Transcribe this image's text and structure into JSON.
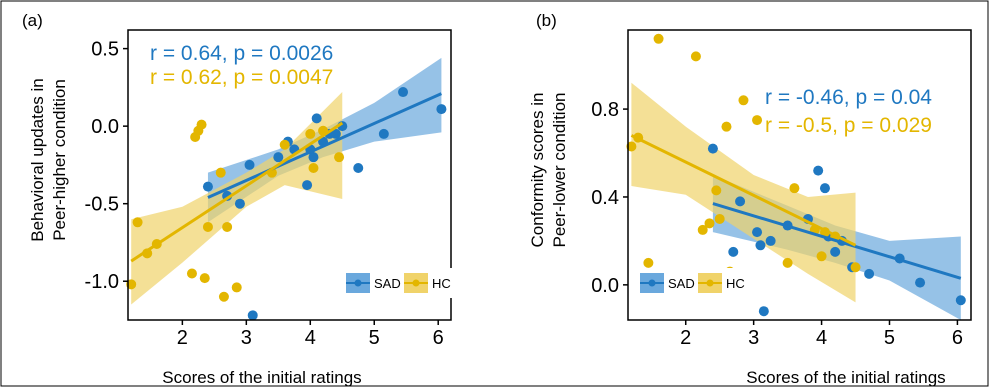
{
  "colors": {
    "sad": "#1f78c1",
    "hc": "#e3b600",
    "ci_sad": "#6aa8dd",
    "ci_hc": "#f0d36a",
    "axis": "#000000"
  },
  "chart_data": [
    {
      "type": "scatter",
      "panel_label": "(a)",
      "xlabel": "Scores of the initial ratings",
      "ylabel_line1": "Behavioral updates in",
      "ylabel_line2": "Peer-higher condition",
      "xlim": [
        1.15,
        6.2
      ],
      "ylim": [
        -1.25,
        0.62
      ],
      "xticks": [
        2,
        3,
        4,
        5,
        6
      ],
      "xtick_labels": [
        "2",
        "3",
        "4",
        "5",
        "6"
      ],
      "yticks": [
        0.5,
        0.0,
        -0.5,
        -1.0
      ],
      "ytick_labels": [
        "0.5",
        "0.0",
        "-0.5",
        "-1.0"
      ],
      "grid": false,
      "legend_position": "bottom-right",
      "annotations": [
        {
          "series": "SAD",
          "text": "r = 0.64, p = 0.0026"
        },
        {
          "series": "HC",
          "text": "r = 0.62, p = 0.0047"
        }
      ],
      "series": [
        {
          "name": "SAD",
          "points": [
            [
              2.4,
              -0.39
            ],
            [
              2.7,
              -0.45
            ],
            [
              2.9,
              -0.5
            ],
            [
              3.05,
              -0.25
            ],
            [
              3.1,
              -1.22
            ],
            [
              3.5,
              -0.2
            ],
            [
              3.65,
              -0.1
            ],
            [
              3.75,
              -0.15
            ],
            [
              3.95,
              -0.38
            ],
            [
              4.0,
              -0.15
            ],
            [
              4.05,
              -0.2
            ],
            [
              4.1,
              0.05
            ],
            [
              4.2,
              -0.1
            ],
            [
              4.3,
              -0.05
            ],
            [
              4.4,
              -0.05
            ],
            [
              4.5,
              0.0
            ],
            [
              4.75,
              -0.27
            ],
            [
              5.15,
              -0.05
            ],
            [
              5.45,
              0.22
            ],
            [
              6.05,
              0.11
            ]
          ],
          "fit_line": [
            [
              2.4,
              -0.46
            ],
            [
              6.05,
              0.21
            ]
          ],
          "ci_upper": [
            [
              2.4,
              -0.3
            ],
            [
              3.5,
              -0.15
            ],
            [
              4.2,
              -0.02
            ],
            [
              5.0,
              0.15
            ],
            [
              6.05,
              0.44
            ]
          ],
          "ci_lower": [
            [
              2.4,
              -0.62
            ],
            [
              3.5,
              -0.32
            ],
            [
              4.2,
              -0.2
            ],
            [
              5.0,
              -0.1
            ],
            [
              6.05,
              -0.04
            ]
          ]
        },
        {
          "name": "HC",
          "points": [
            [
              1.2,
              -1.02
            ],
            [
              1.3,
              -0.62
            ],
            [
              1.45,
              -0.82
            ],
            [
              1.6,
              -0.76
            ],
            [
              2.15,
              -0.95
            ],
            [
              2.2,
              -0.07
            ],
            [
              2.25,
              -0.03
            ],
            [
              2.3,
              0.01
            ],
            [
              2.35,
              -0.98
            ],
            [
              2.4,
              -0.65
            ],
            [
              2.6,
              -0.3
            ],
            [
              2.65,
              -1.1
            ],
            [
              2.7,
              -0.65
            ],
            [
              2.85,
              -1.04
            ],
            [
              3.4,
              -0.3
            ],
            [
              3.6,
              -0.12
            ],
            [
              4.0,
              -0.05
            ],
            [
              4.05,
              -0.27
            ],
            [
              4.2,
              -0.03
            ],
            [
              4.45,
              -0.2
            ]
          ],
          "fit_line": [
            [
              1.2,
              -0.87
            ],
            [
              4.5,
              0.02
            ]
          ],
          "ci_upper": [
            [
              1.2,
              -0.6
            ],
            [
              2.0,
              -0.52
            ],
            [
              3.0,
              -0.3
            ],
            [
              3.6,
              -0.15
            ],
            [
              4.5,
              0.22
            ]
          ],
          "ci_lower": [
            [
              1.2,
              -1.15
            ],
            [
              2.0,
              -0.88
            ],
            [
              3.0,
              -0.52
            ],
            [
              3.6,
              -0.38
            ],
            [
              4.5,
              -0.47
            ]
          ]
        }
      ],
      "legend": [
        {
          "series": "SAD",
          "label": "SAD"
        },
        {
          "series": "HC",
          "label": "HC"
        }
      ]
    },
    {
      "type": "scatter",
      "panel_label": "(b)",
      "xlabel": "Scores of the initial ratings",
      "ylabel_line1": "Conformity scores in",
      "ylabel_line2": "Peer-lower condition",
      "xlim": [
        1.15,
        6.2
      ],
      "ylim": [
        -0.16,
        1.16
      ],
      "xticks": [
        2,
        3,
        4,
        5,
        6
      ],
      "xtick_labels": [
        "2",
        "3",
        "4",
        "5",
        "6"
      ],
      "yticks": [
        0.8,
        0.4,
        0.0
      ],
      "ytick_labels": [
        "0.8",
        "0.4",
        "0.0"
      ],
      "grid": false,
      "legend_position": "bottom-left",
      "annotations": [
        {
          "series": "SAD",
          "text": "r = -0.46, p = 0.04"
        },
        {
          "series": "HC",
          "text": "r = -0.5, p = 0.029"
        }
      ],
      "series": [
        {
          "name": "SAD",
          "points": [
            [
              2.4,
              0.62
            ],
            [
              2.7,
              0.15
            ],
            [
              2.8,
              0.38
            ],
            [
              3.05,
              0.24
            ],
            [
              3.1,
              0.18
            ],
            [
              3.15,
              -0.12
            ],
            [
              3.25,
              0.2
            ],
            [
              3.5,
              0.27
            ],
            [
              3.8,
              0.3
            ],
            [
              3.95,
              0.52
            ],
            [
              4.05,
              0.44
            ],
            [
              4.1,
              0.22
            ],
            [
              4.2,
              0.15
            ],
            [
              4.3,
              0.2
            ],
            [
              4.45,
              0.08
            ],
            [
              4.7,
              0.05
            ],
            [
              5.15,
              0.12
            ],
            [
              5.45,
              0.01
            ],
            [
              6.05,
              -0.07
            ]
          ],
          "fit_line": [
            [
              2.4,
              0.37
            ],
            [
              6.05,
              0.03
            ]
          ],
          "ci_upper": [
            [
              2.4,
              0.5
            ],
            [
              3.5,
              0.36
            ],
            [
              4.2,
              0.27
            ],
            [
              5.0,
              0.2
            ],
            [
              6.05,
              0.22
            ]
          ],
          "ci_lower": [
            [
              2.4,
              0.24
            ],
            [
              3.5,
              0.16
            ],
            [
              4.2,
              0.1
            ],
            [
              5.0,
              0.02
            ],
            [
              6.05,
              -0.16
            ]
          ]
        },
        {
          "name": "HC",
          "points": [
            [
              1.2,
              0.63
            ],
            [
              1.3,
              0.67
            ],
            [
              1.45,
              0.1
            ],
            [
              1.6,
              1.12
            ],
            [
              2.15,
              1.04
            ],
            [
              2.25,
              0.25
            ],
            [
              2.35,
              0.28
            ],
            [
              2.45,
              0.43
            ],
            [
              2.5,
              0.3
            ],
            [
              2.6,
              0.72
            ],
            [
              2.65,
              0.06
            ],
            [
              2.7,
              0.01
            ],
            [
              2.85,
              0.84
            ],
            [
              3.05,
              0.75
            ],
            [
              3.5,
              0.1
            ],
            [
              3.6,
              0.44
            ],
            [
              3.9,
              0.25
            ],
            [
              4.0,
              0.13
            ],
            [
              4.05,
              0.24
            ],
            [
              4.2,
              0.22
            ],
            [
              4.5,
              0.08
            ]
          ],
          "fit_line": [
            [
              1.2,
              0.68
            ],
            [
              4.5,
              0.18
            ]
          ],
          "ci_upper": [
            [
              1.2,
              0.92
            ],
            [
              2.0,
              0.72
            ],
            [
              3.0,
              0.5
            ],
            [
              3.8,
              0.4
            ],
            [
              4.5,
              0.42
            ]
          ],
          "ci_lower": [
            [
              1.2,
              0.45
            ],
            [
              2.0,
              0.41
            ],
            [
              3.0,
              0.21
            ],
            [
              3.8,
              0.05
            ],
            [
              4.5,
              -0.08
            ]
          ]
        }
      ],
      "legend": [
        {
          "series": "SAD",
          "label": "SAD"
        },
        {
          "series": "HC",
          "label": "HC"
        }
      ]
    }
  ]
}
